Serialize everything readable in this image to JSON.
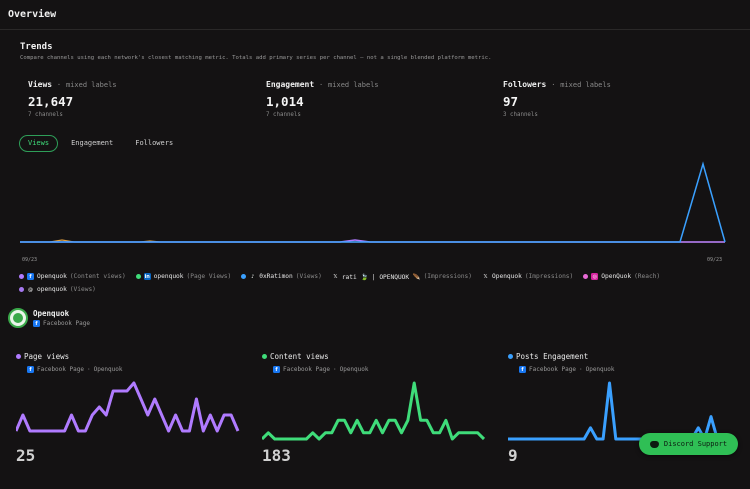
{
  "page": {
    "title": "Overview"
  },
  "trends": {
    "title": "Trends",
    "subtitle": "Compare channels using each network's closest matching metric. Totals add primary series per channel — not a single blended platform metric."
  },
  "metrics": [
    {
      "name": "Views",
      "sep": "·",
      "mixed": "mixed labels",
      "value": "21,647",
      "sub": "7 channels"
    },
    {
      "name": "Engagement",
      "sep": "·",
      "mixed": "mixed labels",
      "value": "1,014",
      "sub": "7 channels"
    },
    {
      "name": "Followers",
      "sep": "·",
      "mixed": "mixed labels",
      "value": "97",
      "sub": "3 channels"
    }
  ],
  "tabs": [
    {
      "label": "Views",
      "active": true
    },
    {
      "label": "Engagement",
      "active": false
    },
    {
      "label": "Followers",
      "active": false
    }
  ],
  "trend_chart": {
    "x_start": "09/23",
    "x_end": "09/23",
    "spike_color": "#3aa0ff",
    "base_color": "#b07bff",
    "secondary_color": "#e0a040"
  },
  "legend": [
    {
      "color": "#b07bff",
      "icon": "facebook-icon",
      "icon_color": "#1877f2",
      "glyph": "f",
      "name": "Openquok",
      "metric": "(Content views)"
    },
    {
      "color": "#3fdc7a",
      "icon": "linkedin-icon",
      "icon_color": "#0a66c2",
      "glyph": "in",
      "name": "openquok",
      "metric": "(Page Views)"
    },
    {
      "color": "#3aa0ff",
      "icon": "tiktok-icon",
      "icon_color": "#111111",
      "glyph": "♪",
      "name": "0xRatimon",
      "metric": "(Views)"
    },
    {
      "color": "",
      "icon": "x-icon",
      "icon_color": "",
      "glyph": "𝕏",
      "name": "rati 🍃 | OPENQUOK 🪶",
      "metric": "(Impressions)"
    },
    {
      "color": "",
      "icon": "x-icon",
      "icon_color": "",
      "glyph": "𝕏",
      "name": "Openquok",
      "metric": "(Impressions)"
    },
    {
      "color": "#e86ad6",
      "icon": "instagram-icon",
      "icon_color": "#d6249f",
      "glyph": "◎",
      "name": "OpenQuok",
      "metric": "(Reach)"
    },
    {
      "color": "#a678f0",
      "icon": "threads-icon",
      "icon_color": "",
      "glyph": "@",
      "name": "openquok",
      "metric": "(Views)"
    }
  ],
  "account": {
    "name": "Openquok",
    "network": "Facebook Page"
  },
  "mini_charts": [
    {
      "title": "Page views",
      "color": "#b07bff",
      "network": "Facebook Page",
      "sep": "·",
      "account": "Openquok",
      "value": "25",
      "series": [
        1,
        3,
        1,
        1,
        1,
        1,
        1,
        1,
        3,
        1,
        1,
        3,
        4,
        3,
        6,
        6,
        6,
        7,
        5,
        3,
        5,
        3,
        1,
        3,
        1,
        1,
        5,
        1,
        3,
        1,
        3,
        3,
        1
      ]
    },
    {
      "title": "Content views",
      "color": "#3fdc7a",
      "network": "Facebook Page",
      "sep": "·",
      "account": "Openquok",
      "value": "183",
      "series": [
        0,
        1,
        0,
        0,
        0,
        0,
        0,
        0,
        1,
        0,
        1,
        1,
        3,
        3,
        1,
        3,
        1,
        1,
        3,
        1,
        3,
        3,
        1,
        3,
        9,
        3,
        3,
        1,
        1,
        3,
        0,
        1,
        1,
        1,
        1,
        0
      ]
    },
    {
      "title": "Posts Engagement",
      "color": "#3aa0ff",
      "network": "Facebook Page",
      "sep": "·",
      "account": "Openquok",
      "value": "9",
      "series": [
        0,
        0,
        0,
        0,
        0,
        0,
        0,
        0,
        0,
        0,
        0,
        0,
        0,
        1,
        0,
        0,
        5,
        0,
        0,
        0,
        0,
        0,
        0,
        0,
        0,
        0,
        0,
        0,
        0,
        0,
        1,
        0,
        2,
        0,
        0,
        0
      ]
    }
  ],
  "discord": {
    "label": "Discord Support"
  }
}
